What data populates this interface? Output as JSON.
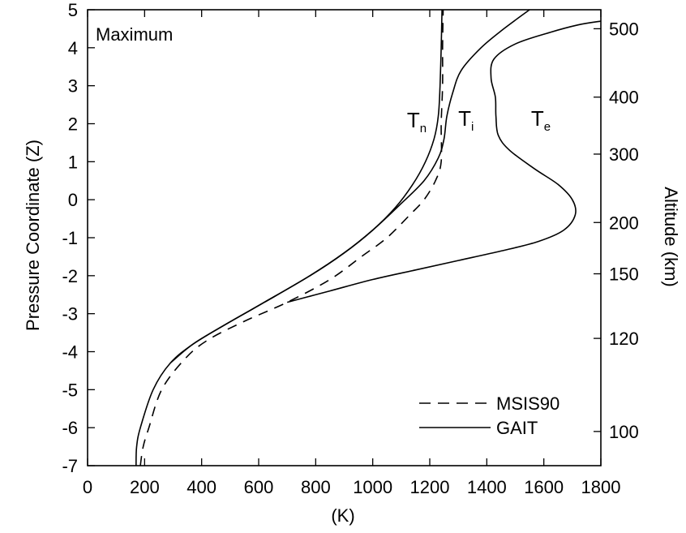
{
  "chart_data": {
    "type": "line",
    "panel_label": "Maximum",
    "xlabel": "(K)",
    "ylabel": "Pressure Coordinate (Z)",
    "y2label": "Altitude (km)",
    "xlim": [
      0,
      1800
    ],
    "ylim": [
      -7,
      5
    ],
    "xticks": [
      0,
      200,
      400,
      600,
      800,
      1000,
      1200,
      1400,
      1600,
      1800
    ],
    "yticks": [
      5,
      4,
      3,
      2,
      1,
      0,
      -1,
      -2,
      -3,
      -4,
      -5,
      -6,
      -7
    ],
    "y2ticks": [
      {
        "z": 4.5,
        "label": "500"
      },
      {
        "z": 2.7,
        "label": "400"
      },
      {
        "z": 1.2,
        "label": "300"
      },
      {
        "z": -0.6,
        "label": "200"
      },
      {
        "z": -1.95,
        "label": "150"
      },
      {
        "z": -3.65,
        "label": "120"
      },
      {
        "z": -6.1,
        "label": "100"
      }
    ],
    "grid": false,
    "legend_position": "bottom-right",
    "legend": [
      {
        "label": "MSIS90",
        "style": "dashed"
      },
      {
        "label": "GAIT",
        "style": "solid"
      }
    ],
    "curve_labels": [
      {
        "main": "T",
        "sub": "n",
        "x": 1120,
        "z": 1.9
      },
      {
        "main": "T",
        "sub": "i",
        "x": 1300,
        "z": 1.95
      },
      {
        "main": "T",
        "sub": "e",
        "x": 1555,
        "z": 1.95
      }
    ],
    "series": [
      {
        "name": "Tn",
        "model": "MSIS90",
        "style": "dashed",
        "points": [
          [
            185,
            -7
          ],
          [
            195,
            -6.5
          ],
          [
            215,
            -6
          ],
          [
            260,
            -5
          ],
          [
            340,
            -4.2
          ],
          [
            420,
            -3.7
          ],
          [
            550,
            -3.2
          ],
          [
            700,
            -2.7
          ],
          [
            850,
            -2.1
          ],
          [
            960,
            -1.5
          ],
          [
            1050,
            -1
          ],
          [
            1130,
            -0.4
          ],
          [
            1180,
            0
          ],
          [
            1220,
            0.5
          ],
          [
            1240,
            1
          ],
          [
            1240,
            2
          ],
          [
            1245,
            3
          ],
          [
            1245,
            4
          ],
          [
            1247,
            5
          ]
        ]
      },
      {
        "name": "Tn",
        "model": "GAIT",
        "style": "solid",
        "points": [
          [
            170,
            -7
          ],
          [
            172,
            -6.5
          ],
          [
            185,
            -6
          ],
          [
            230,
            -5
          ],
          [
            290,
            -4.3
          ],
          [
            370,
            -3.8
          ],
          [
            480,
            -3.3
          ],
          [
            620,
            -2.7
          ],
          [
            780,
            -2
          ],
          [
            900,
            -1.4
          ],
          [
            1000,
            -0.8
          ],
          [
            1080,
            -0.2
          ],
          [
            1140,
            0.4
          ],
          [
            1185,
            1
          ],
          [
            1215,
            1.6
          ],
          [
            1230,
            2.2
          ],
          [
            1236,
            3
          ],
          [
            1240,
            4
          ],
          [
            1243,
            5
          ]
        ]
      },
      {
        "name": "Ti",
        "model": "GAIT",
        "style": "solid",
        "points": [
          [
            290,
            -4.3
          ],
          [
            370,
            -3.8
          ],
          [
            480,
            -3.3
          ],
          [
            620,
            -2.7
          ],
          [
            780,
            -2
          ],
          [
            900,
            -1.4
          ],
          [
            1000,
            -0.8
          ],
          [
            1100,
            -0.1
          ],
          [
            1180,
            0.5
          ],
          [
            1230,
            1.1
          ],
          [
            1250,
            1.6
          ],
          [
            1260,
            2.2
          ],
          [
            1280,
            2.8
          ],
          [
            1310,
            3.4
          ],
          [
            1380,
            4
          ],
          [
            1460,
            4.5
          ],
          [
            1550,
            5
          ]
        ]
      },
      {
        "name": "Te",
        "model": "GAIT",
        "style": "solid",
        "points": [
          [
            700,
            -2.7
          ],
          [
            850,
            -2.4
          ],
          [
            1000,
            -2.1
          ],
          [
            1150,
            -1.85
          ],
          [
            1300,
            -1.6
          ],
          [
            1450,
            -1.35
          ],
          [
            1580,
            -1.1
          ],
          [
            1670,
            -0.8
          ],
          [
            1710,
            -0.4
          ],
          [
            1700,
            0
          ],
          [
            1650,
            0.4
          ],
          [
            1570,
            0.8
          ],
          [
            1480,
            1.3
          ],
          [
            1440,
            1.7
          ],
          [
            1432,
            2.2
          ],
          [
            1430,
            2.7
          ],
          [
            1415,
            3.2
          ],
          [
            1425,
            3.7
          ],
          [
            1500,
            4.1
          ],
          [
            1620,
            4.4
          ],
          [
            1720,
            4.6
          ],
          [
            1800,
            4.7
          ]
        ]
      }
    ]
  }
}
